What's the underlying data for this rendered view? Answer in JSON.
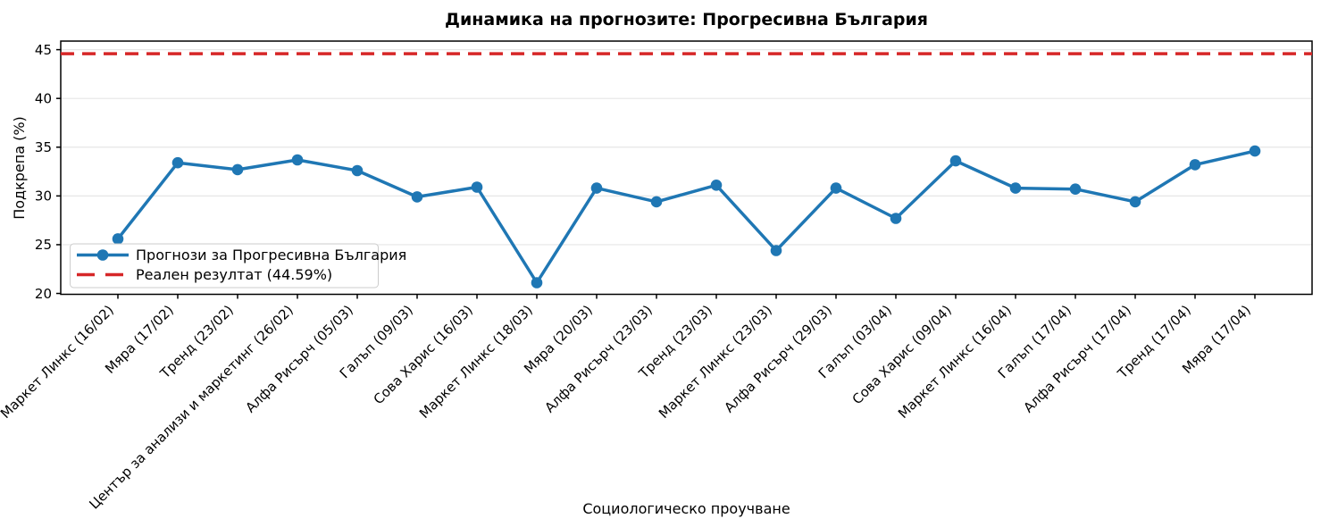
{
  "chart_data": {
    "type": "line",
    "title": "Динамика на прогнозите: Прогресивна България",
    "xlabel": "Социологическо проучване",
    "ylabel": "Подкрепа (%)",
    "categories": [
      "Маркет Линкс (16/02)",
      "Мяра (17/02)",
      "Тренд (23/02)",
      "Център за анализи и маркетинг (26/02)",
      "Алфа Рисърч (05/03)",
      "Галъп (09/03)",
      "Сова Харис (16/03)",
      "Маркет Линкс (18/03)",
      "Мяра (20/03)",
      "Алфа Рисърч (23/03)",
      "Тренд (23/03)",
      "Маркет Линкс (23/03)",
      "Алфа Рисърч (29/03)",
      "Галъп (03/04)",
      "Сова Харис (09/04)",
      "Маркет Линкс (16/04)",
      "Галъп (17/04)",
      "Алфа Рисърч (17/04)",
      "Тренд (17/04)",
      "Мяра (17/04)"
    ],
    "series": [
      {
        "name": "Прогнози за Прогресивна България",
        "values": [
          25.6,
          33.4,
          32.7,
          33.7,
          32.6,
          29.9,
          30.9,
          21.1,
          30.8,
          29.4,
          31.1,
          24.4,
          30.8,
          27.7,
          33.6,
          30.8,
          30.7,
          29.4,
          33.2,
          34.6
        ],
        "color": "#1f77b4",
        "marker": "circle",
        "line_style": "solid"
      }
    ],
    "reference_line": {
      "name": "Реален резултат (44.59%)",
      "value": 44.59,
      "color": "#d62728",
      "line_style": "dashed"
    },
    "yticks": [
      20,
      25,
      30,
      35,
      40,
      45
    ],
    "ylim": [
      19.91,
      45.88
    ],
    "grid": "horizontal",
    "legend_position": "lower-left",
    "x_tick_rotation": 45
  },
  "colors": {
    "grid": "#e6e6e6",
    "axis": "#000000",
    "background": "#ffffff",
    "legend_border": "#cccccc"
  }
}
